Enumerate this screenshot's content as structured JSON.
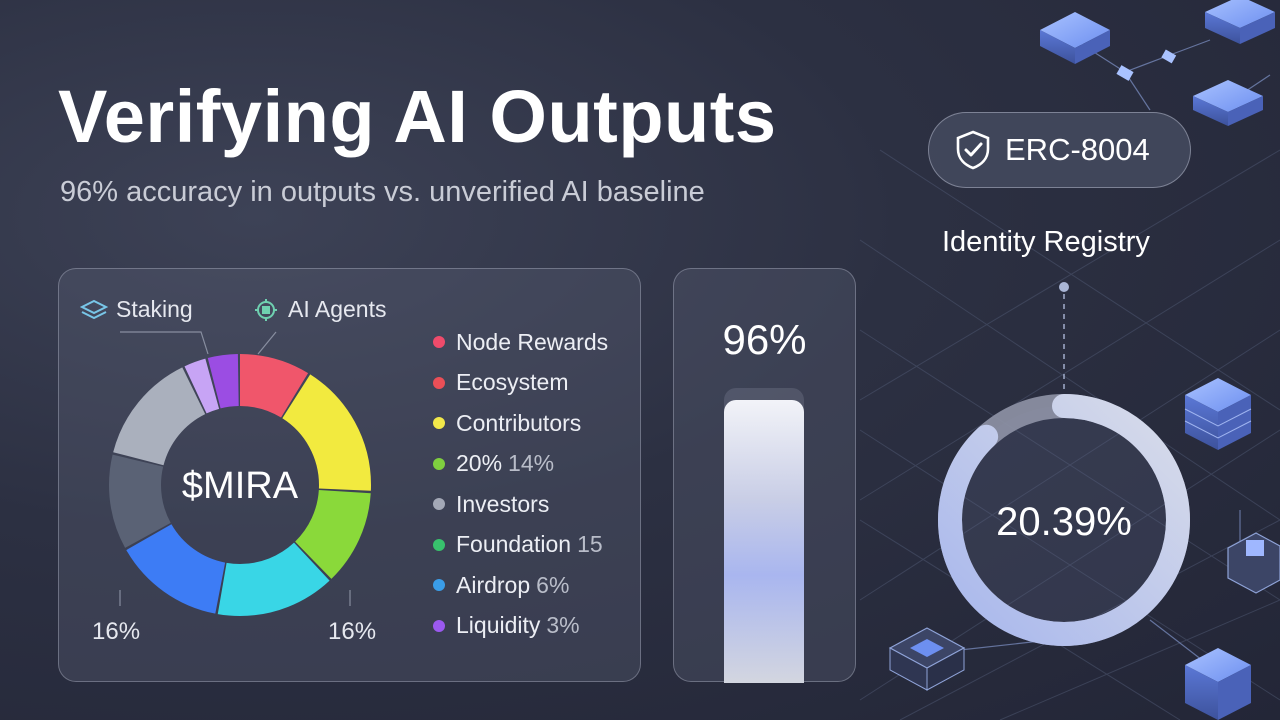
{
  "header": {
    "title": "Verifying AI Outputs",
    "subtitle": "96% accuracy in outputs vs. unverified AI baseline"
  },
  "donut": {
    "center_label": "$MIRA",
    "annotations": [
      {
        "label": "Staking",
        "icon": "layers-icon"
      },
      {
        "label": "AI Agents",
        "icon": "ai-chip-icon"
      }
    ],
    "bottom_left_label": "16%",
    "bottom_right_label": "16%",
    "segments": [
      {
        "share": 9,
        "color": "#f0566b"
      },
      {
        "share": 17,
        "color": "#f2ea3f"
      },
      {
        "share": 12,
        "color": "#8ad93a"
      },
      {
        "share": 15,
        "color": "#39d6e6"
      },
      {
        "share": 14,
        "color": "#3d7cf5"
      },
      {
        "share": 12,
        "color": "#5a6275"
      },
      {
        "share": 14,
        "color": "#aab0bd"
      },
      {
        "share": 3,
        "color": "#c7a4f5"
      },
      {
        "share": 4,
        "color": "#9b4de3"
      }
    ]
  },
  "legend": [
    {
      "label": "Node Rewards",
      "extra": "",
      "color": "#ef4b6b"
    },
    {
      "label": "Ecosystem",
      "extra": "",
      "color": "#ea4f57"
    },
    {
      "label": "Contributors",
      "extra": "",
      "color": "#f2e84a"
    },
    {
      "label": "20%",
      "extra": "14%",
      "color": "#7fcf3f"
    },
    {
      "label": "Investors",
      "extra": "",
      "color": "#a3a8b6"
    },
    {
      "label": "Foundation",
      "extra": "15",
      "color": "#38c26d"
    },
    {
      "label": "Airdrop",
      "extra": "6%",
      "color": "#3a9de8"
    },
    {
      "label": "Liquidity",
      "extra": "3%",
      "color": "#9b59f0"
    }
  ],
  "accuracy_bar": {
    "label": "96%",
    "fill_percent": 96
  },
  "registry": {
    "badge_label": "ERC-8004",
    "badge_icon": "shield-check-icon",
    "label": "Identity Registry",
    "ring_value": "20.39%",
    "ring_fill_fraction": 0.88
  }
}
